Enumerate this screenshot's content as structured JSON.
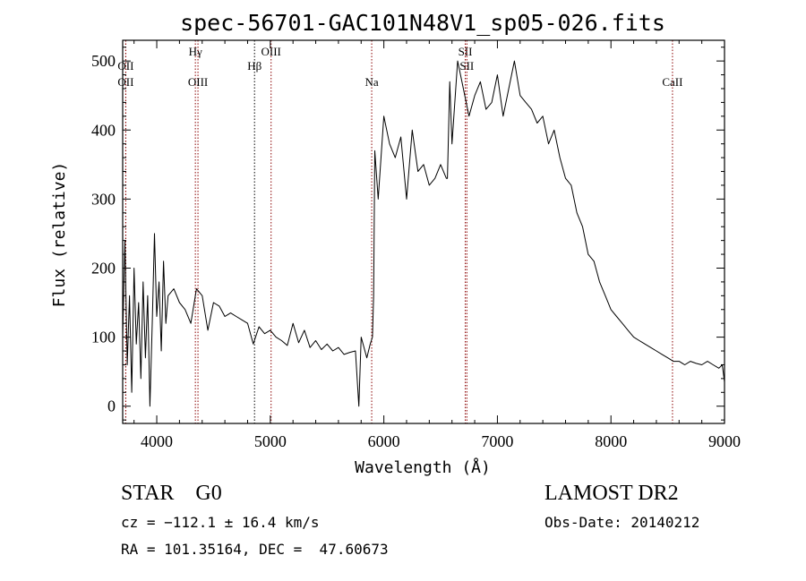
{
  "chart_data": {
    "type": "line",
    "title": "spec-56701-GAC101N48V1_sp05-026.fits",
    "xlabel": "Wavelength (Å)",
    "ylabel": "Flux (relative)",
    "xlim": [
      3700,
      9000
    ],
    "ylim": [
      -25,
      530
    ],
    "xticks": [
      4000,
      5000,
      6000,
      7000,
      8000,
      9000
    ],
    "yticks": [
      0,
      100,
      200,
      300,
      400,
      500
    ],
    "series": [
      {
        "x": [
          3700,
          3720,
          3740,
          3760,
          3780,
          3800,
          3820,
          3840,
          3860,
          3880,
          3900,
          3920,
          3940,
          3960,
          3980,
          4000,
          4020,
          4040,
          4060,
          4080,
          4100,
          4150,
          4200,
          4250,
          4300,
          4350,
          4400,
          4450,
          4500,
          4550,
          4600,
          4650,
          4700,
          4750,
          4800,
          4850,
          4900,
          4950,
          5000,
          5050,
          5100,
          5150,
          5200,
          5250,
          5300,
          5350,
          5400,
          5450,
          5500,
          5550,
          5600,
          5650,
          5700,
          5750,
          5780,
          5800,
          5850,
          5880,
          5900,
          5910,
          5920,
          5950,
          6000,
          6050,
          6100,
          6150,
          6200,
          6250,
          6300,
          6350,
          6400,
          6450,
          6500,
          6550,
          6560,
          6580,
          6600,
          6650,
          6700,
          6750,
          6800,
          6850,
          6900,
          6950,
          7000,
          7050,
          7100,
          7150,
          7200,
          7250,
          7300,
          7350,
          7400,
          7450,
          7500,
          7550,
          7600,
          7650,
          7700,
          7750,
          7800,
          7850,
          7900,
          7950,
          8000,
          8050,
          8100,
          8150,
          8200,
          8250,
          8300,
          8350,
          8400,
          8450,
          8500,
          8550,
          8600,
          8650,
          8700,
          8750,
          8800,
          8850,
          8900,
          8950,
          8980,
          9000
        ],
        "y": [
          100,
          240,
          60,
          160,
          20,
          200,
          90,
          150,
          40,
          180,
          70,
          160,
          0,
          120,
          250,
          130,
          180,
          80,
          210,
          120,
          160,
          170,
          150,
          140,
          120,
          170,
          160,
          110,
          150,
          145,
          130,
          135,
          130,
          125,
          120,
          90,
          115,
          105,
          110,
          100,
          95,
          88,
          120,
          92,
          110,
          85,
          95,
          82,
          90,
          80,
          85,
          75,
          78,
          80,
          0,
          100,
          70,
          90,
          100,
          160,
          370,
          300,
          420,
          380,
          360,
          390,
          300,
          400,
          340,
          350,
          320,
          330,
          350,
          330,
          330,
          470,
          380,
          500,
          460,
          420,
          450,
          470,
          430,
          440,
          480,
          420,
          460,
          500,
          450,
          440,
          430,
          410,
          420,
          380,
          400,
          360,
          330,
          320,
          280,
          260,
          220,
          210,
          180,
          160,
          140,
          130,
          120,
          110,
          100,
          95,
          90,
          85,
          80,
          75,
          70,
          65,
          65,
          60,
          65,
          62,
          60,
          65,
          60,
          55,
          60,
          35
        ]
      }
    ],
    "line_markers": [
      {
        "x": 3727,
        "label": "OII",
        "row": 1,
        "color": "#8b0000"
      },
      {
        "x": 3727,
        "label": "OII",
        "row": 2,
        "color": "#8b0000"
      },
      {
        "x": 4340,
        "label": "Hγ",
        "row": 0,
        "color": "#8b0000"
      },
      {
        "x": 4363,
        "label": "OIII",
        "row": 2,
        "color": "#8b0000"
      },
      {
        "x": 4861,
        "label": "Hβ",
        "row": 1,
        "color": "#000000"
      },
      {
        "x": 5007,
        "label": "OIII",
        "row": 0,
        "color": "#8b0000"
      },
      {
        "x": 5893,
        "label": "Na",
        "row": 2,
        "color": "#8b0000"
      },
      {
        "x": 6717,
        "label": "SII",
        "row": 0,
        "color": "#8b0000"
      },
      {
        "x": 6731,
        "label": "SII",
        "row": 1,
        "color": "#8b0000"
      },
      {
        "x": 8542,
        "label": "CaII",
        "row": 2,
        "color": "#8b0000"
      }
    ],
    "grid": false,
    "colors": {
      "spectrum": "#000000",
      "marker": "#8b0000"
    }
  },
  "info": {
    "class_label": "STAR    G0",
    "cz_line": "cz = −112.1 ± 16.4 km/s",
    "radec_line": "RA = 101.35164, DEC =  47.60673",
    "survey": "LAMOST DR2",
    "obs_date": "Obs-Date: 20140212"
  }
}
